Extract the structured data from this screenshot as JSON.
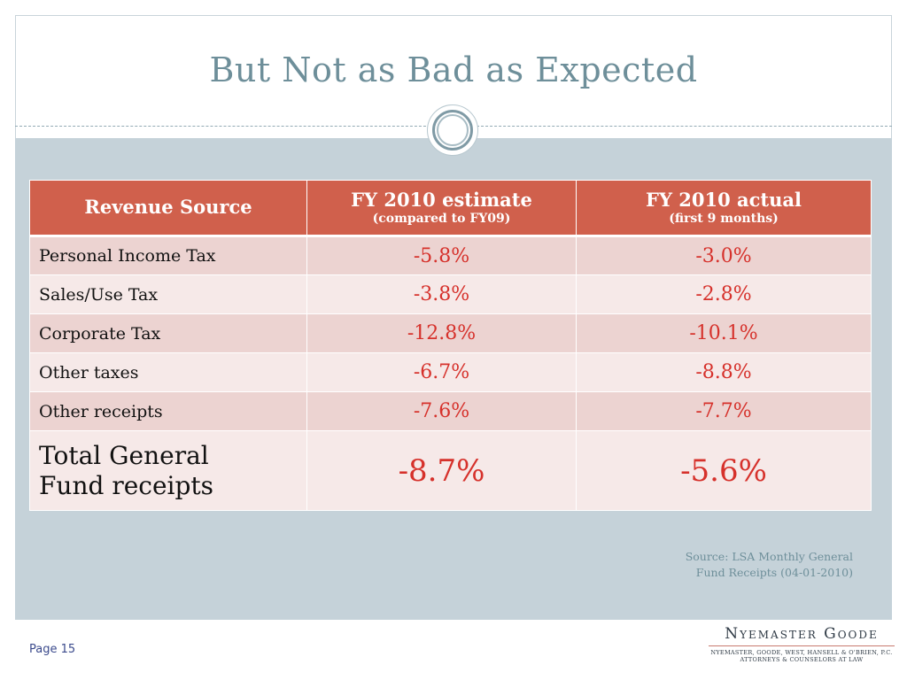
{
  "slide": {
    "title": "But Not as Bad as Expected",
    "page_number": "Page 15",
    "source_lines": [
      "Source: LSA Monthly General",
      "Fund Receipts (04-01-2010)"
    ]
  },
  "table": {
    "headers": [
      {
        "main": "Revenue Source",
        "sub": ""
      },
      {
        "main": "FY 2010 estimate",
        "sub": "(compared to FY09)"
      },
      {
        "main": "FY 2010 actual",
        "sub": "(first 9 months)"
      }
    ],
    "rows": [
      {
        "source": "Personal Income Tax",
        "estimate": "-5.8%",
        "actual": "-3.0%"
      },
      {
        "source": "Sales/Use Tax",
        "estimate": "-3.8%",
        "actual": "-2.8%"
      },
      {
        "source": "Corporate Tax",
        "estimate": "-12.8%",
        "actual": "-10.1%"
      },
      {
        "source": "Other taxes",
        "estimate": "-6.7%",
        "actual": "-8.8%"
      },
      {
        "source": "Other receipts",
        "estimate": "-7.6%",
        "actual": "-7.7%"
      }
    ],
    "total": {
      "source_line1": "Total General",
      "source_line2": "Fund receipts",
      "estimate": "-8.7%",
      "actual": "-5.6%"
    }
  },
  "logo": {
    "name": "Nyemaster Goode",
    "line1": "Nyemaster, Goode, West, Hansell & O'Brien, P.C.",
    "line2": "Attorneys & Counselors at Law"
  },
  "colors": {
    "header_bg": "#d0604c",
    "value_text": "#d6312b",
    "title_text": "#6e8f9a",
    "band_bg": "#c5d2d9"
  }
}
